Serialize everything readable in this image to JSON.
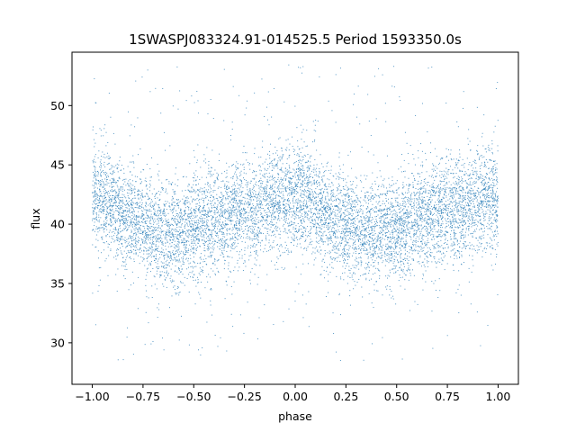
{
  "chart_data": {
    "type": "scatter",
    "title": "1SWASPJ083324.91-014525.5 Period 1593350.0s",
    "xlabel": "phase",
    "ylabel": "flux",
    "xlim": [
      -1.1,
      1.1
    ],
    "ylim": [
      26.5,
      54.5
    ],
    "xticks": [
      -1.0,
      -0.75,
      -0.5,
      -0.25,
      0.0,
      0.25,
      0.5,
      0.75,
      1.0
    ],
    "xtick_labels": [
      "−1.00",
      "−0.75",
      "−0.50",
      "−0.25",
      "0.00",
      "0.25",
      "0.50",
      "0.75",
      "1.00"
    ],
    "yticks": [
      30,
      35,
      40,
      45,
      50
    ],
    "ytick_labels": [
      "30",
      "35",
      "40",
      "45",
      "50"
    ],
    "grid": false,
    "point_color": "#1f77b4",
    "series": [
      {
        "profile_phase": [
          -1.0,
          -0.95,
          -0.9,
          -0.85,
          -0.8,
          -0.75,
          -0.7,
          -0.65,
          -0.6,
          -0.55,
          -0.5,
          -0.45,
          -0.4,
          -0.35,
          -0.3,
          -0.25,
          -0.2,
          -0.15,
          -0.1,
          -0.05,
          0.0,
          0.05,
          0.1,
          0.15,
          0.2,
          0.25,
          0.3,
          0.35,
          0.4,
          0.45,
          0.5,
          0.55,
          0.6,
          0.65,
          0.7,
          0.75,
          0.8,
          0.85,
          0.9,
          0.95,
          1.0
        ],
        "profile_flux": [
          42.0,
          42.5,
          41.5,
          40.7,
          40.5,
          40.0,
          39.5,
          39.3,
          39.2,
          39.4,
          39.8,
          40.0,
          40.3,
          40.6,
          41.0,
          41.3,
          41.0,
          41.5,
          42.0,
          42.3,
          42.0,
          42.5,
          41.5,
          40.7,
          40.5,
          40.0,
          39.5,
          39.3,
          39.2,
          39.4,
          39.8,
          40.0,
          40.3,
          40.6,
          41.0,
          41.3,
          41.0,
          41.5,
          42.0,
          42.3,
          42.0
        ],
        "scatter_sigma": 2.2,
        "point_count": 9000
      }
    ]
  }
}
